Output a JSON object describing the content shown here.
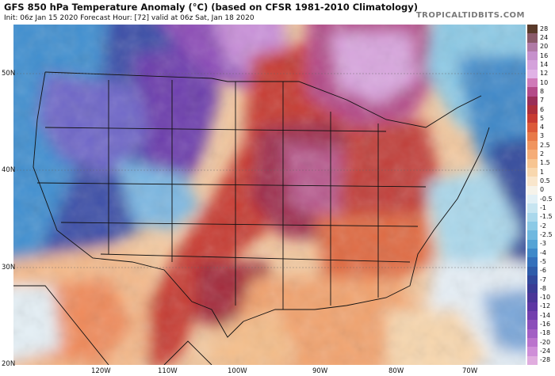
{
  "header": {
    "title": "GFS 850 hPa Temperature Anomaly (°C) (based on CFSR 1981-2010 Climatology)",
    "subtitle": "Init: 06z Jan 15 2020   Forecast Hour: [72]   valid at 06z Sat, Jan 18 2020",
    "brand": "TROPICALTIDBITS.COM"
  },
  "axes": {
    "lat_labels": [
      "50N",
      "40N",
      "30N",
      "20N"
    ],
    "lon_labels": [
      "120W",
      "110W",
      "100W",
      "90W",
      "80W",
      "70W"
    ]
  },
  "colorbar": {
    "labels": [
      "28",
      "24",
      "20",
      "16",
      "14",
      "12",
      "10",
      "8",
      "7",
      "6",
      "5",
      "4",
      "3",
      "2.5",
      "2",
      "1.5",
      "1",
      "0.5",
      "0",
      "-0.5",
      "-1",
      "-1.5",
      "-2",
      "-2.5",
      "-3",
      "-4",
      "-5",
      "-6",
      "-7",
      "-8",
      "-10",
      "-12",
      "-14",
      "-16",
      "-18",
      "-20",
      "-24",
      "-28"
    ],
    "colors": [
      "#5a3a2a",
      "#8a5a6a",
      "#b07aa6",
      "#c691cc",
      "#d4a2db",
      "#e0b3e6",
      "#d07ab8",
      "#b44a88",
      "#9a2e58",
      "#ad2f3c",
      "#c83b33",
      "#dc5a3a",
      "#e87a4a",
      "#f09560",
      "#f5ad78",
      "#f7c592",
      "#f8d7ae",
      "#f9e6cc",
      "#f6f3ea",
      "#e2f0f6",
      "#c7e5f1",
      "#aad8ec",
      "#8ccae6",
      "#6fb8df",
      "#55a3d5",
      "#3f89c9",
      "#3470bb",
      "#2f5caa",
      "#32499c",
      "#3a3c95",
      "#4b3698",
      "#5d37a3",
      "#7340ae",
      "#8b4eba",
      "#a35fc4",
      "#bb74cd",
      "#cf8fd8",
      "#e0addf"
    ]
  }
}
